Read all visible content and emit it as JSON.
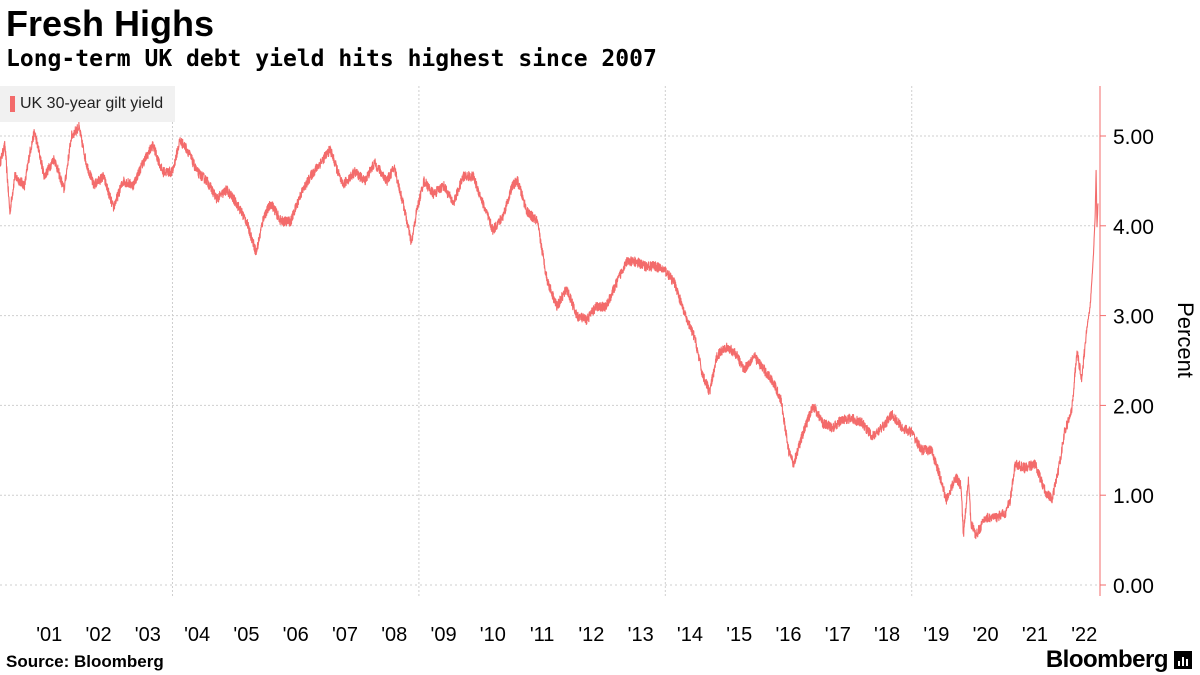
{
  "header": {
    "title": "Fresh Highs",
    "subtitle": "Long-term UK debt yield hits highest since 2007"
  },
  "footer": {
    "source": "Source: Bloomberg",
    "brand": "Bloomberg"
  },
  "colors": {
    "series": "#f36b6b",
    "grid": "#cfcfcf",
    "legend_bg": "#f1f1f1"
  },
  "chart_data": {
    "type": "line",
    "title": "Fresh Highs",
    "subtitle": "Long-term UK debt yield hits highest since 2007",
    "ylabel": "Percent",
    "xlabel": "",
    "legend": [
      "UK 30-year gilt yield"
    ],
    "legend_position": "top-left",
    "ylim": [
      -0.15,
      5.6
    ],
    "xlim": [
      2000.5,
      2022.85
    ],
    "yticks": [
      0,
      1,
      2,
      3,
      4,
      5
    ],
    "ytick_labels": [
      "0.00",
      "1.00",
      "2.00",
      "3.00",
      "4.00",
      "5.00"
    ],
    "xtick_values": [
      2001,
      2002,
      2003,
      2004,
      2005,
      2006,
      2007,
      2008,
      2009,
      2010,
      2011,
      2012,
      2013,
      2014,
      2015,
      2016,
      2017,
      2018,
      2019,
      2020,
      2021,
      2022
    ],
    "xtick_labels": [
      "'01",
      "'02",
      "'03",
      "'04",
      "'05",
      "'06",
      "'07",
      "'08",
      "'09",
      "'10",
      "'11",
      "'12",
      "'13",
      "'14",
      "'15",
      "'16",
      "'17",
      "'18",
      "'19",
      "'20",
      "'21",
      "'22"
    ],
    "vertical_gridlines": [
      2004,
      2009,
      2014,
      2019
    ],
    "grid": true,
    "series": [
      {
        "name": "UK 30-year gilt yield",
        "x": [
          2000.5,
          2000.6,
          2000.7,
          2000.8,
          2001.0,
          2001.1,
          2001.2,
          2001.4,
          2001.6,
          2001.8,
          2001.95,
          2002.1,
          2002.25,
          2002.4,
          2002.6,
          2002.8,
          2003.0,
          2003.2,
          2003.4,
          2003.6,
          2003.8,
          2004.0,
          2004.15,
          2004.3,
          2004.5,
          2004.7,
          2004.9,
          2005.1,
          2005.3,
          2005.5,
          2005.7,
          2005.85,
          2006.0,
          2006.2,
          2006.4,
          2006.6,
          2006.8,
          2007.0,
          2007.2,
          2007.45,
          2007.7,
          2007.9,
          2008.1,
          2008.35,
          2008.5,
          2008.7,
          2008.85,
          2008.95,
          2009.1,
          2009.3,
          2009.5,
          2009.7,
          2009.9,
          2010.1,
          2010.3,
          2010.5,
          2010.7,
          2010.9,
          2011.0,
          2011.2,
          2011.4,
          2011.6,
          2011.8,
          2012.0,
          2012.2,
          2012.4,
          2012.6,
          2012.8,
          2013.0,
          2013.2,
          2013.4,
          2013.6,
          2013.8,
          2014.0,
          2014.2,
          2014.4,
          2014.6,
          2014.75,
          2014.9,
          2015.05,
          2015.2,
          2015.4,
          2015.6,
          2015.8,
          2016.0,
          2016.2,
          2016.35,
          2016.5,
          2016.6,
          2016.8,
          2017.0,
          2017.2,
          2017.4,
          2017.6,
          2017.8,
          2018.0,
          2018.2,
          2018.4,
          2018.6,
          2018.8,
          2019.0,
          2019.2,
          2019.4,
          2019.55,
          2019.7,
          2019.9,
          2020.0,
          2020.05,
          2020.15,
          2020.2,
          2020.3,
          2020.5,
          2020.7,
          2020.9,
          2021.0,
          2021.1,
          2021.3,
          2021.5,
          2021.7,
          2021.85,
          2022.0,
          2022.1,
          2022.25,
          2022.35,
          2022.45,
          2022.55,
          2022.62,
          2022.68,
          2022.72,
          2022.74,
          2022.76,
          2022.78
        ],
        "values": [
          4.7,
          4.9,
          4.15,
          4.55,
          4.45,
          4.8,
          5.05,
          4.55,
          4.75,
          4.4,
          5.0,
          5.1,
          4.7,
          4.45,
          4.55,
          4.2,
          4.5,
          4.45,
          4.7,
          4.9,
          4.6,
          4.6,
          4.95,
          4.85,
          4.6,
          4.5,
          4.3,
          4.4,
          4.25,
          4.05,
          3.7,
          4.1,
          4.25,
          4.05,
          4.05,
          4.35,
          4.55,
          4.7,
          4.85,
          4.45,
          4.6,
          4.5,
          4.7,
          4.5,
          4.65,
          4.2,
          3.8,
          4.15,
          4.5,
          4.35,
          4.45,
          4.25,
          4.55,
          4.55,
          4.25,
          3.95,
          4.1,
          4.45,
          4.5,
          4.15,
          4.05,
          3.4,
          3.1,
          3.3,
          3.0,
          2.95,
          3.1,
          3.1,
          3.35,
          3.6,
          3.6,
          3.55,
          3.55,
          3.5,
          3.35,
          3.0,
          2.75,
          2.35,
          2.15,
          2.55,
          2.65,
          2.6,
          2.4,
          2.55,
          2.4,
          2.25,
          2.05,
          1.5,
          1.35,
          1.7,
          2.0,
          1.8,
          1.75,
          1.85,
          1.85,
          1.8,
          1.65,
          1.75,
          1.9,
          1.75,
          1.7,
          1.5,
          1.5,
          1.25,
          0.95,
          1.2,
          1.1,
          0.55,
          1.2,
          0.7,
          0.55,
          0.75,
          0.75,
          0.8,
          0.95,
          1.35,
          1.3,
          1.35,
          1.05,
          0.95,
          1.35,
          1.7,
          1.95,
          2.6,
          2.3,
          2.85,
          3.1,
          3.6,
          4.1,
          4.6,
          4.0,
          4.25
        ]
      }
    ]
  }
}
